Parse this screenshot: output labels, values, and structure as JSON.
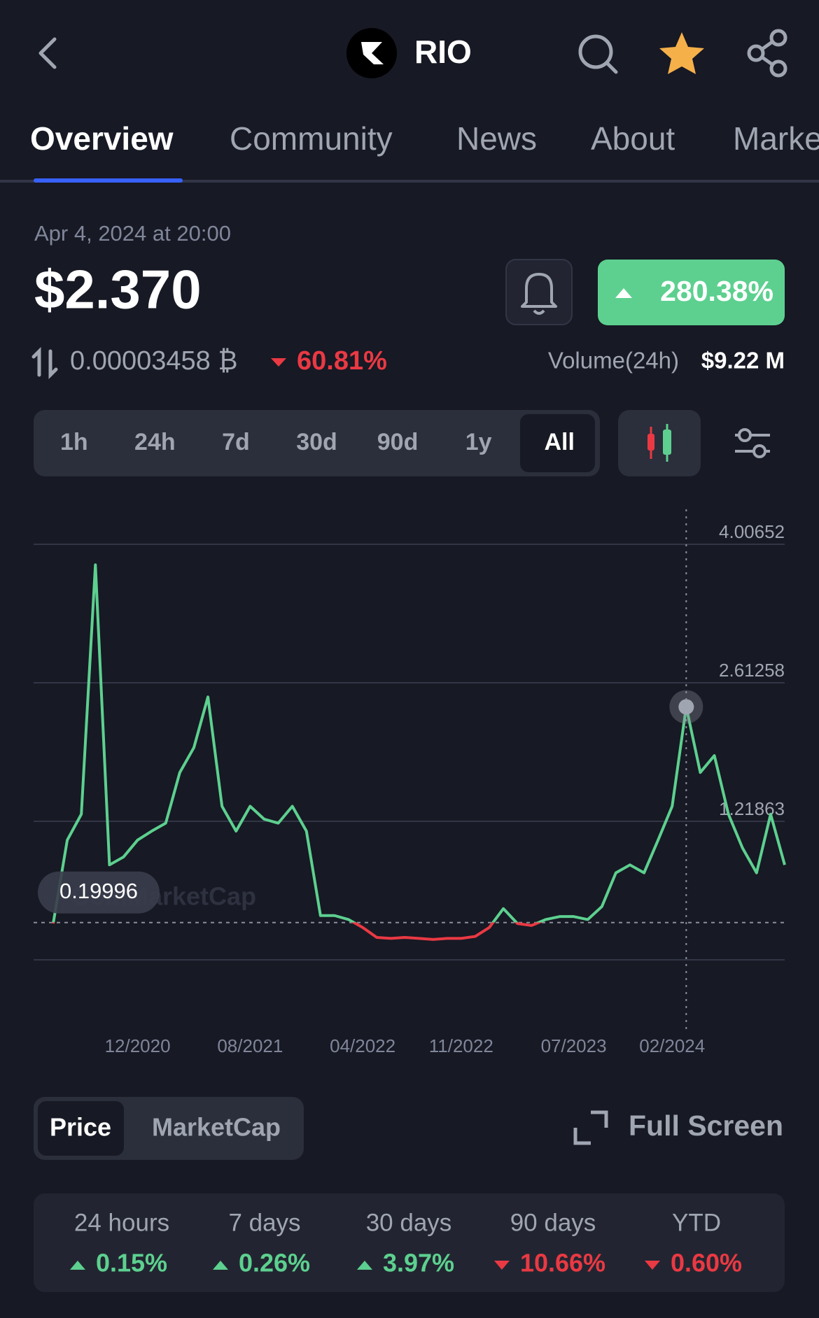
{
  "header": {
    "title": "RIO"
  },
  "tabs": [
    "Overview",
    "Community",
    "News",
    "About",
    "Markets"
  ],
  "price": {
    "timestamp": "Apr 4, 2024 at 20:00",
    "value": "$2.370",
    "change": "280.38%",
    "btc_price": "0.00003458 ₿",
    "btc_change": "60.81%",
    "volume_label": "Volume(24h)",
    "volume": "$9.22 M"
  },
  "ranges": [
    "1h",
    "24h",
    "7d",
    "30d",
    "90d",
    "1y",
    "All"
  ],
  "chart_data": {
    "type": "line",
    "x": [
      "06/2020",
      "07/2020",
      "08/2020",
      "09/2020",
      "10/2020",
      "11/2020",
      "12/2020",
      "01/2021",
      "02/2021",
      "03/2021",
      "04/2021",
      "05/2021",
      "06/2021",
      "07/2021",
      "08/2021",
      "09/2021",
      "10/2021",
      "11/2021",
      "12/2021",
      "01/2022",
      "02/2022",
      "03/2022",
      "04/2022",
      "05/2022",
      "06/2022",
      "07/2022",
      "08/2022",
      "09/2022",
      "10/2022",
      "11/2022",
      "12/2022",
      "01/2023",
      "02/2023",
      "03/2023",
      "04/2023",
      "05/2023",
      "06/2023",
      "07/2023",
      "08/2023",
      "09/2023",
      "10/2023",
      "11/2023",
      "12/2023",
      "01/2024",
      "02/2024",
      "03/2024",
      "04/2024",
      "05/2024",
      "06/2024",
      "07/2024",
      "08/2024",
      "09/2024",
      "10/2024"
    ],
    "series": [
      {
        "color": "#5dd08f",
        "below_color": "#ea3943",
        "values": [
          0.19,
          1.03,
          1.29,
          3.8,
          0.78,
          0.86,
          1.03,
          1.12,
          1.2,
          1.71,
          1.96,
          2.47,
          1.37,
          1.12,
          1.37,
          1.24,
          1.2,
          1.37,
          1.12,
          0.27,
          0.27,
          0.23,
          0.15,
          0.05,
          0.04,
          0.05,
          0.04,
          0.03,
          0.04,
          0.04,
          0.06,
          0.15,
          0.34,
          0.19,
          0.17,
          0.23,
          0.26,
          0.26,
          0.23,
          0.36,
          0.7,
          0.78,
          0.7,
          1.03,
          1.37,
          2.37,
          1.71,
          1.88,
          1.29,
          0.95,
          0.7,
          1.29,
          0.78
        ]
      }
    ],
    "ylim": [
      -0.17531,
      4.00652
    ],
    "yticks": [
      4.00652,
      2.61258,
      1.21863
    ],
    "xticks": [
      "12/2020",
      "08/2021",
      "04/2022",
      "11/2022",
      "07/2023",
      "02/2024"
    ],
    "reference_value": 0.19996,
    "crosshair": "03/2024",
    "watermark": "CoinMarketCap",
    "grid": true
  },
  "chart_modes": [
    "Price",
    "MarketCap"
  ],
  "full_screen": "Full Screen",
  "stats": [
    {
      "label": "24 hours",
      "value": "0.15%",
      "direction": "up"
    },
    {
      "label": "7 days",
      "value": "0.26%",
      "direction": "up"
    },
    {
      "label": "30 days",
      "value": "3.97%",
      "direction": "up"
    },
    {
      "label": "90 days",
      "value": "10.66%",
      "direction": "down"
    },
    {
      "label": "YTD",
      "value": "0.60%",
      "direction": "down"
    }
  ]
}
